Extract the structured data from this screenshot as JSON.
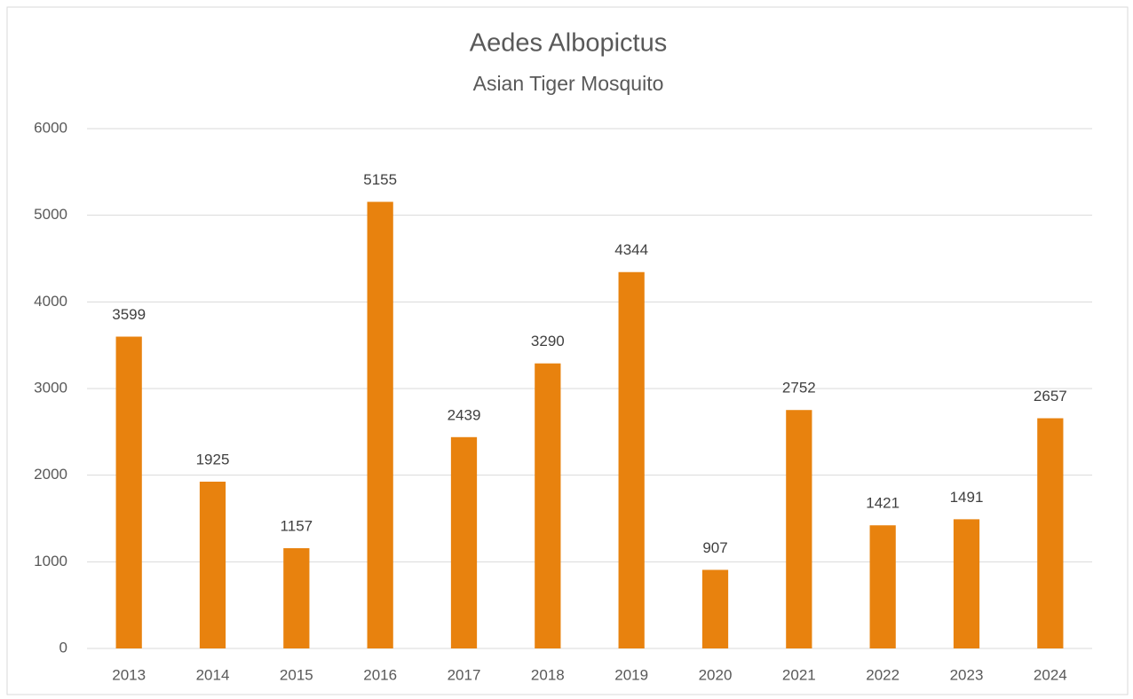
{
  "chart_data": {
    "type": "bar",
    "title": "Aedes Albopictus",
    "subtitle": "Asian Tiger Mosquito",
    "categories": [
      "2013",
      "2014",
      "2015",
      "2016",
      "2017",
      "2018",
      "2019",
      "2020",
      "2021",
      "2022",
      "2023",
      "2024"
    ],
    "values": [
      3599,
      1925,
      1157,
      5155,
      2439,
      3290,
      4344,
      907,
      2752,
      1421,
      1491,
      2657
    ],
    "color": "#e8820e",
    "ylim": [
      0,
      6000
    ],
    "yticks": [
      0,
      1000,
      2000,
      3000,
      4000,
      5000,
      6000
    ],
    "grid": true
  }
}
